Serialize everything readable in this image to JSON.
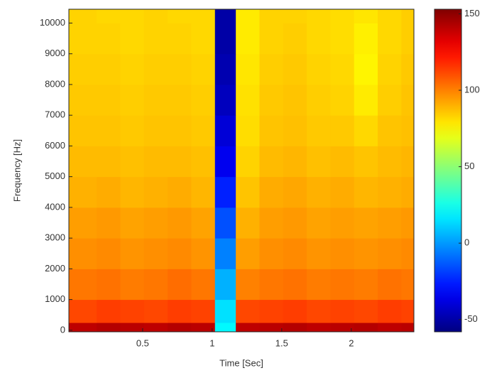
{
  "chart_data": {
    "type": "spectrogram",
    "x_label": "Time [Sec]",
    "y_label": "Frequency [Hz]",
    "xlim": [
      -0.03,
      2.45
    ],
    "xticks": [
      0.5,
      1,
      1.5,
      2
    ],
    "ylim": [
      -50,
      10450
    ],
    "yticks": [
      0,
      1000,
      2000,
      3000,
      4000,
      5000,
      6000,
      7000,
      8000,
      9000,
      10000
    ],
    "clim": [
      -58,
      153
    ],
    "cticks": [
      -50,
      0,
      50,
      100,
      150
    ],
    "colormap": "jet",
    "time_bins": [
      -0.03,
      0.17,
      0.34,
      0.51,
      0.68,
      0.85,
      1.02,
      1.17,
      1.34,
      1.51,
      1.68,
      1.85,
      2.02,
      2.19,
      2.36,
      2.45
    ],
    "freq_bins": [
      -50,
      250,
      1000,
      2000,
      3000,
      4000,
      5000,
      6000,
      7000,
      8000,
      9000,
      10000,
      10450
    ],
    "values": [
      [
        140,
        142,
        141,
        140,
        142,
        141,
        20,
        140,
        141,
        142,
        140,
        141,
        142,
        140,
        141
      ],
      [
        112,
        114,
        113,
        112,
        114,
        113,
        15,
        112,
        113,
        114,
        112,
        113,
        112,
        114,
        113
      ],
      [
        102,
        103,
        101,
        102,
        104,
        102,
        5,
        100,
        102,
        103,
        101,
        102,
        101,
        103,
        102
      ],
      [
        97,
        98,
        96,
        97,
        98,
        96,
        -5,
        94,
        97,
        98,
        96,
        97,
        96,
        97,
        98
      ],
      [
        94,
        95,
        93,
        94,
        95,
        93,
        -15,
        90,
        94,
        95,
        93,
        94,
        93,
        94,
        95
      ],
      [
        90,
        91,
        89,
        90,
        91,
        89,
        -25,
        86,
        91,
        92,
        90,
        91,
        89,
        90,
        91
      ],
      [
        88,
        88,
        87,
        88,
        88,
        87,
        -35,
        83,
        88,
        89,
        87,
        88,
        86,
        88,
        89
      ],
      [
        86,
        86,
        85,
        86,
        86,
        85,
        -40,
        81,
        86,
        87,
        85,
        85,
        82,
        86,
        87
      ],
      [
        85,
        85,
        84,
        85,
        85,
        84,
        -45,
        80,
        85,
        86,
        84,
        83,
        78,
        84,
        86
      ],
      [
        84,
        84,
        83,
        84,
        84,
        83,
        -48,
        79,
        84,
        85,
        83,
        82,
        76,
        83,
        85
      ],
      [
        83,
        83,
        82,
        83,
        83,
        82,
        -50,
        78,
        83,
        84,
        82,
        81,
        77,
        82,
        84
      ],
      [
        83,
        82,
        82,
        83,
        82,
        82,
        -50,
        78,
        83,
        83,
        82,
        81,
        79,
        82,
        84
      ]
    ]
  }
}
